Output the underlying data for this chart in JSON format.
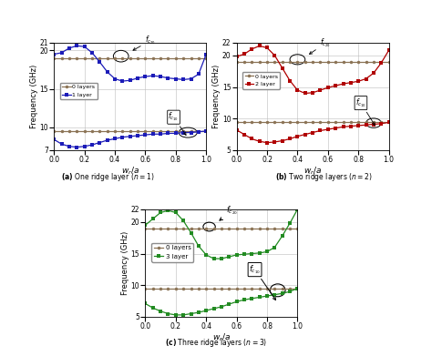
{
  "background_color": "#ffffff",
  "subplot_a": {
    "caption": "(\\mathbf{a})\\text{ One ridge layer }(n=1)",
    "xlabel": "$w_r/a$",
    "ylabel": "Frequency (GHz)",
    "ylim": [
      7,
      21
    ],
    "yticks": [
      7,
      10,
      15,
      20,
      21
    ],
    "xlim": [
      0,
      1
    ],
    "xticks": [
      0,
      0.2,
      0.4,
      0.6,
      0.8,
      1.0
    ],
    "layer0_color": "#8B7355",
    "layer0_label": "0 layers",
    "layer1_color": "#1C1CB8",
    "layer1_label": "1 layer"
  },
  "subplot_b": {
    "caption": "(\\mathbf{b})\\text{ Two ridge layers }(n=2)",
    "xlabel": "$w_r/a$",
    "ylabel": "Frequency (GHz)",
    "ylim": [
      5,
      22
    ],
    "yticks": [
      5,
      10,
      15,
      20,
      22
    ],
    "xlim": [
      0,
      1
    ],
    "xticks": [
      0,
      0.2,
      0.4,
      0.6,
      0.8,
      1.0
    ],
    "layer0_color": "#8B7355",
    "layer0_label": "0 layers",
    "layer2_color": "#B00000",
    "layer2_label": "2 layer"
  },
  "subplot_c": {
    "caption": "(\\mathbf{c})\\text{ Three ridge layers }(n=3)",
    "xlabel": "$w_r/a$",
    "ylabel": "Frequency (GHz)",
    "ylim": [
      5,
      22
    ],
    "yticks": [
      5,
      10,
      15,
      20,
      22
    ],
    "xlim": [
      0,
      1
    ],
    "xticks": [
      0,
      0.2,
      0.4,
      0.6,
      0.8,
      1.0
    ],
    "layer0_color": "#8B7355",
    "layer0_label": "0 layers",
    "layer3_color": "#228B22",
    "layer3_label": "3 layer"
  },
  "f_te10_0": 9.5,
  "f_te20_0": 19.0,
  "f_te20_1": [
    19.5,
    19.7,
    20.3,
    20.6,
    20.5,
    19.7,
    18.5,
    17.2,
    16.3,
    16.0,
    16.1,
    16.4,
    16.6,
    16.7,
    16.6,
    16.4,
    16.3,
    16.2,
    16.3,
    16.9,
    19.5
  ],
  "f_te10_1": [
    8.4,
    7.8,
    7.5,
    7.4,
    7.5,
    7.7,
    8.0,
    8.3,
    8.5,
    8.7,
    8.8,
    8.9,
    9.0,
    9.1,
    9.1,
    9.2,
    9.2,
    9.3,
    9.3,
    9.4,
    9.5
  ],
  "f_te20_2": [
    19.8,
    20.2,
    21.0,
    21.5,
    21.2,
    20.0,
    18.0,
    16.0,
    14.5,
    14.0,
    14.1,
    14.5,
    14.9,
    15.2,
    15.5,
    15.7,
    15.9,
    16.3,
    17.2,
    18.8,
    20.8
  ],
  "f_te10_2": [
    8.2,
    7.5,
    6.8,
    6.4,
    6.2,
    6.3,
    6.5,
    6.8,
    7.2,
    7.5,
    7.8,
    8.1,
    8.3,
    8.5,
    8.7,
    8.8,
    8.9,
    9.0,
    9.1,
    9.2,
    9.4
  ],
  "f_te20_3": [
    19.5,
    20.5,
    21.5,
    21.8,
    21.5,
    20.2,
    18.3,
    16.2,
    14.8,
    14.2,
    14.2,
    14.5,
    14.8,
    14.9,
    15.0,
    15.1,
    15.3,
    16.0,
    17.8,
    19.8,
    22.0
  ],
  "f_te10_3": [
    7.1,
    6.4,
    5.9,
    5.5,
    5.3,
    5.3,
    5.5,
    5.7,
    6.0,
    6.3,
    6.6,
    7.0,
    7.4,
    7.7,
    7.9,
    8.1,
    8.3,
    8.5,
    8.7,
    9.0,
    9.5
  ]
}
